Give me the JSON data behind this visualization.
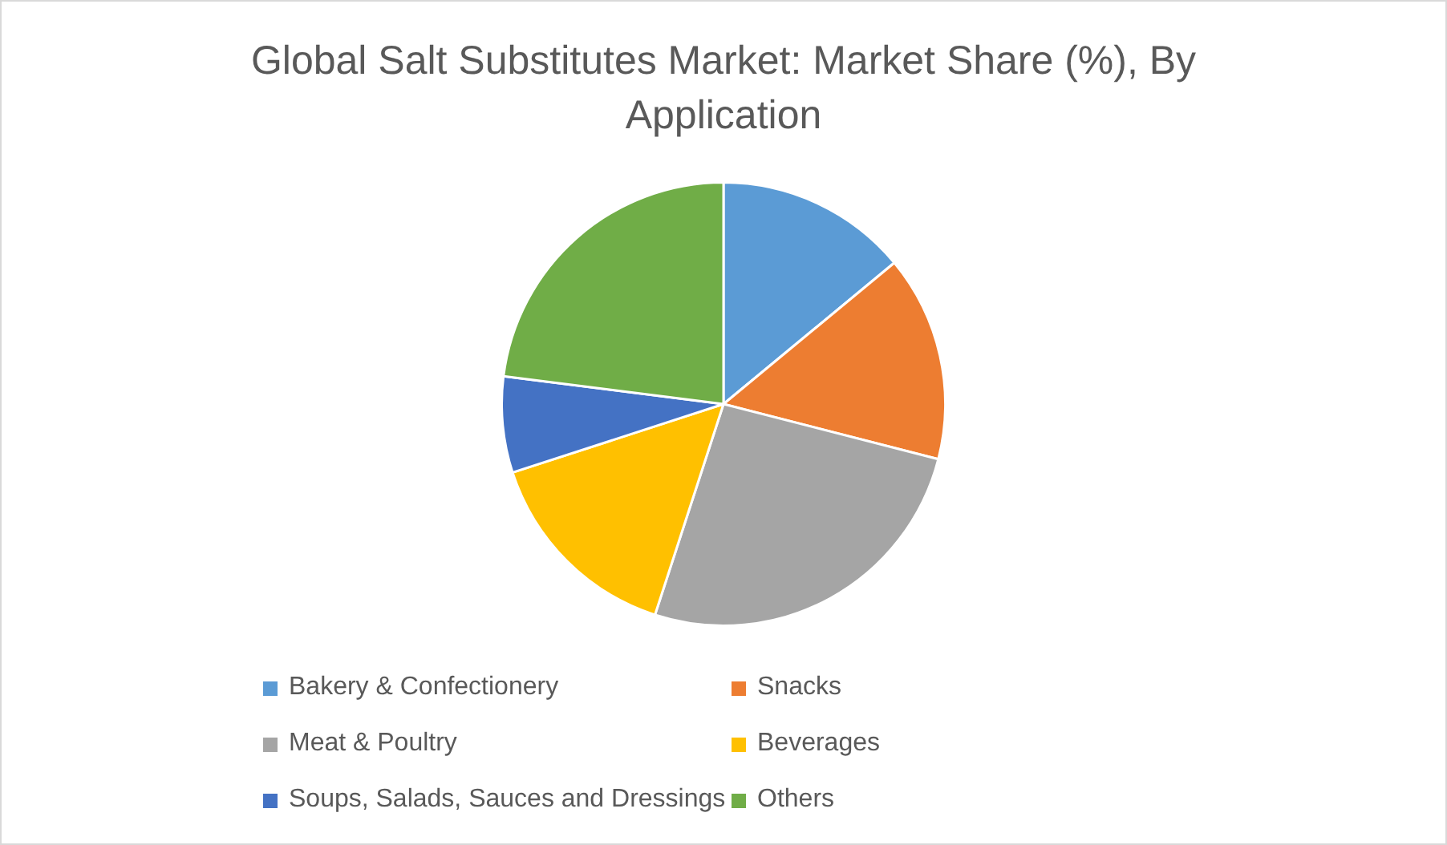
{
  "chart_data": {
    "type": "pie",
    "title": "Global Salt Substitutes Market: Market Share (%), By Application",
    "categories": [
      "Bakery & Confectionery",
      "Snacks",
      "Meat & Poultry",
      "Beverages",
      "Soups, Salads, Sauces and Dressings",
      "Others"
    ],
    "values": [
      14,
      15,
      26,
      15,
      7,
      23
    ],
    "colors": [
      "#5b9bd5",
      "#ed7d31",
      "#a5a5a5",
      "#ffc000",
      "#4472c4",
      "#70ad47"
    ],
    "legend": "bottom"
  }
}
